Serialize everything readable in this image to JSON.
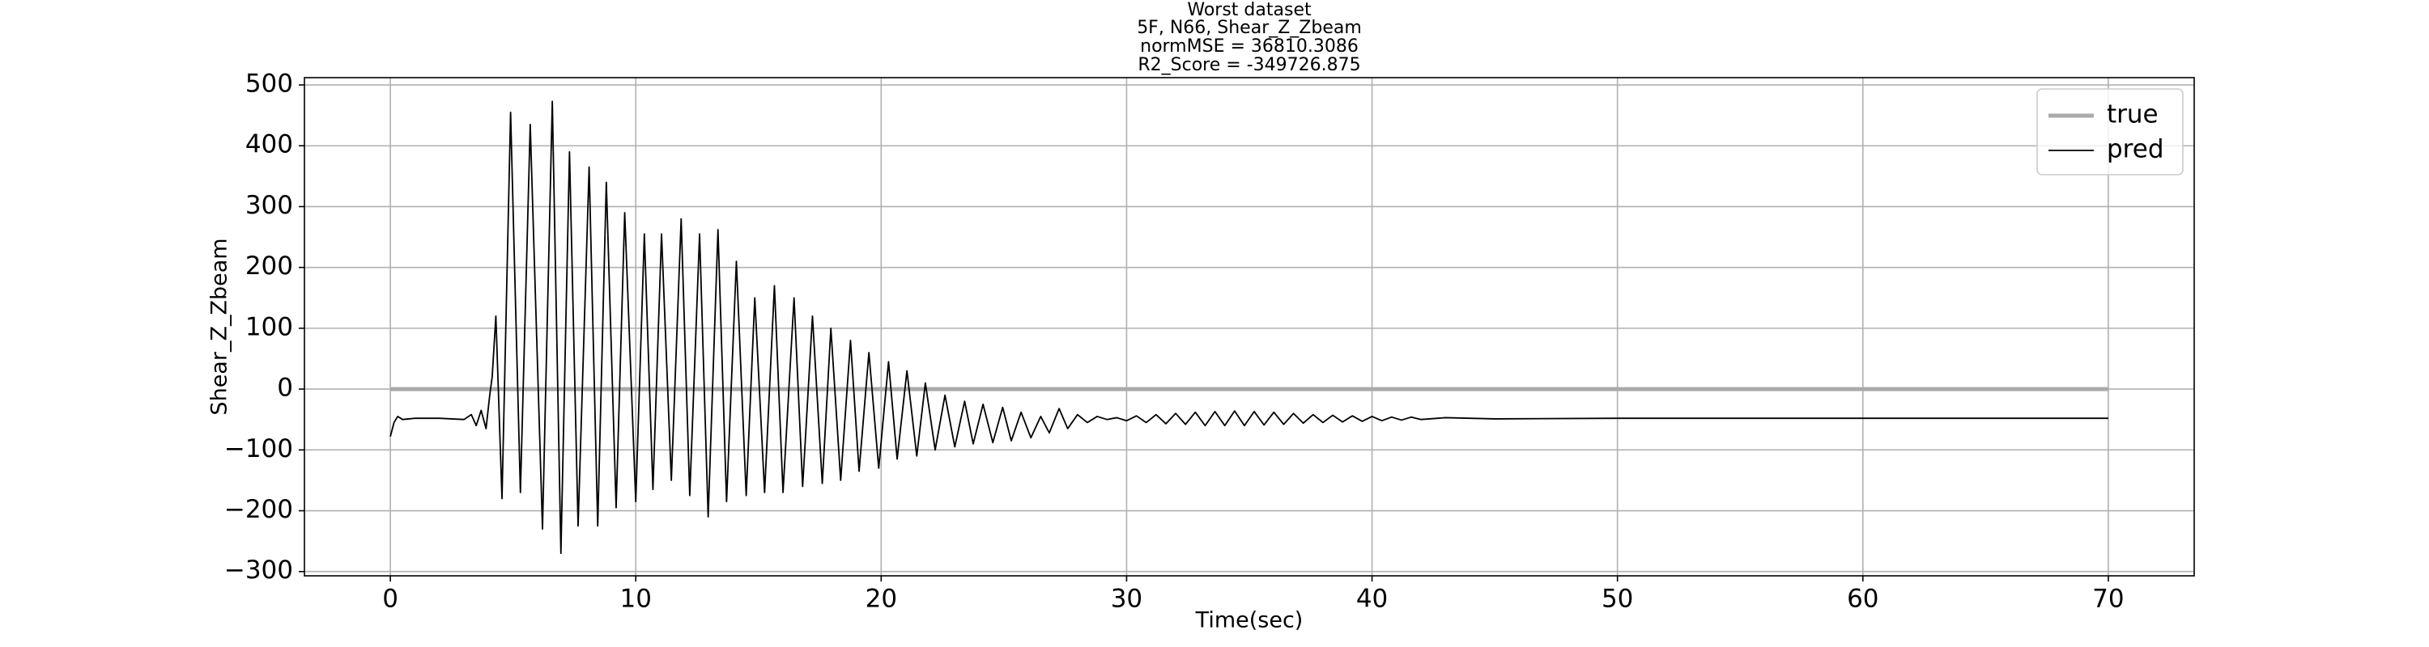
{
  "chart_data": {
    "type": "line",
    "title": [
      "Worst dataset",
      "5F, N66, Shear_Z_Zbeam",
      "normMSE = 36810.3086",
      "R2_Score = -349726.875"
    ],
    "xlabel": "Time(sec)",
    "ylabel": "Shear_Z_Zbeam",
    "xlim": [
      -3.5,
      73.5
    ],
    "xticks": [
      0,
      10,
      20,
      30,
      40,
      50,
      60,
      70
    ],
    "ylim": [
      -307,
      512
    ],
    "yticks": [
      {
        "value": -300,
        "label": "−300"
      },
      {
        "value": -200,
        "label": "−200"
      },
      {
        "value": -100,
        "label": "−100"
      },
      0,
      100,
      200,
      300,
      400,
      500
    ],
    "grid": true,
    "legend": "upper right",
    "series": [
      {
        "name": "true",
        "color": "#aaaaaa",
        "x": [
          0,
          70
        ],
        "values": [
          0,
          0
        ]
      },
      {
        "name": "pred",
        "color": "#000000",
        "x": [
          0,
          0.15,
          0.3,
          0.5,
          1,
          2,
          3,
          3.3,
          3.5,
          3.7,
          3.9,
          4.05,
          4.15,
          4.3,
          4.55,
          4.9,
          5.3,
          5.7,
          6.2,
          6.6,
          6.95,
          7.3,
          7.65,
          8.1,
          8.45,
          8.8,
          9.2,
          9.55,
          10.0,
          10.35,
          10.7,
          11.05,
          11.45,
          11.85,
          12.2,
          12.6,
          12.95,
          13.35,
          13.7,
          14.1,
          14.5,
          14.85,
          15.25,
          15.65,
          16.0,
          16.45,
          16.8,
          17.2,
          17.6,
          17.95,
          18.35,
          18.75,
          19.1,
          19.5,
          19.9,
          20.3,
          20.65,
          21.05,
          21.45,
          21.8,
          22.2,
          22.6,
          23.0,
          23.4,
          23.75,
          24.15,
          24.55,
          24.95,
          25.3,
          25.7,
          26.1,
          26.5,
          26.85,
          27.25,
          27.6,
          28.0,
          28.4,
          28.8,
          29.2,
          29.6,
          30.0,
          30.4,
          30.8,
          31.2,
          31.6,
          32,
          32.4,
          32.8,
          33.2,
          33.6,
          34.0,
          34.4,
          34.8,
          35.2,
          35.6,
          36.0,
          36.4,
          36.8,
          37.2,
          37.6,
          38.0,
          38.4,
          38.8,
          39.2,
          39.6,
          40.0,
          40.4,
          40.8,
          41.2,
          41.6,
          42,
          43,
          45,
          50,
          60,
          70
        ],
        "values": [
          -78,
          -55,
          -45,
          -50,
          -48,
          -48,
          -50,
          -42,
          -60,
          -35,
          -65,
          -10,
          20,
          120,
          -180,
          455,
          -170,
          435,
          -230,
          473,
          -270,
          390,
          -225,
          365,
          -225,
          340,
          -195,
          290,
          -185,
          255,
          -165,
          255,
          -150,
          280,
          -175,
          255,
          -210,
          262,
          -185,
          210,
          -175,
          150,
          -170,
          170,
          -170,
          150,
          -160,
          120,
          -155,
          100,
          -150,
          80,
          -135,
          60,
          -130,
          45,
          -115,
          30,
          -110,
          10,
          -100,
          -10,
          -95,
          -20,
          -90,
          -25,
          -88,
          -30,
          -85,
          -38,
          -80,
          -45,
          -72,
          -32,
          -65,
          -42,
          -55,
          -45,
          -50,
          -47,
          -52,
          -44,
          -55,
          -42,
          -57,
          -40,
          -58,
          -38,
          -60,
          -37,
          -60,
          -36,
          -60,
          -37,
          -59,
          -38,
          -58,
          -40,
          -56,
          -42,
          -55,
          -43,
          -54,
          -44,
          -53,
          -45,
          -52,
          -46,
          -51,
          -46,
          -50,
          -47,
          -49,
          -48,
          -48,
          -48
        ]
      }
    ]
  }
}
